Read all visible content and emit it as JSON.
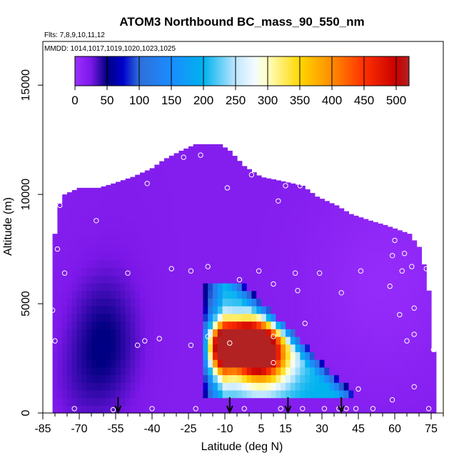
{
  "chart_data": {
    "type": "heatmap",
    "title": "ATOM3 Northbound BC_mass_90_550_nm",
    "subtitle_lines": [
      "Flts: 7,8,9,10,11,12",
      "MMDD: 1014,1017,1019,1020,1023,1025"
    ],
    "xlabel": "Latitude (deg N)",
    "ylabel": "Altitude (m)",
    "xlim": [
      -85,
      80
    ],
    "ylim": [
      0,
      17000
    ],
    "x_tick_labels": [
      "-85",
      "-70",
      "-55",
      "-40",
      "-25",
      "-10",
      "5",
      "15",
      "30",
      "45",
      "60",
      "75"
    ],
    "x_tick_values": [
      -85,
      -70,
      -55,
      -40,
      -25,
      -10,
      5,
      15,
      30,
      45,
      60,
      75
    ],
    "x_minor_step": 5,
    "y_ticks": [
      0,
      5000,
      10000,
      15000
    ],
    "colorbar": {
      "range": [
        0,
        520
      ],
      "tick_values": [
        0,
        50,
        100,
        150,
        200,
        250,
        300,
        350,
        400,
        450,
        500
      ],
      "tick_labels": [
        "0",
        "50",
        "100",
        "150",
        "200",
        "250",
        "300",
        "350",
        "400",
        "450",
        "500"
      ]
    },
    "color_stops": [
      {
        "v": 0,
        "c": "#9b30ff"
      },
      {
        "v": 25,
        "c": "#7b17e8"
      },
      {
        "v": 50,
        "c": "#000080"
      },
      {
        "v": 75,
        "c": "#0000cd"
      },
      {
        "v": 100,
        "c": "#2f6fd8"
      },
      {
        "v": 150,
        "c": "#1a8cff"
      },
      {
        "v": 200,
        "c": "#00b2ee"
      },
      {
        "v": 250,
        "c": "#bfe7ff"
      },
      {
        "v": 280,
        "c": "#f4fbff"
      },
      {
        "v": 300,
        "c": "#ffffc0"
      },
      {
        "v": 350,
        "c": "#ffd700"
      },
      {
        "v": 400,
        "c": "#ff8c00"
      },
      {
        "v": 450,
        "c": "#ff3000"
      },
      {
        "v": 500,
        "c": "#c80000"
      },
      {
        "v": 520,
        "c": "#b22222"
      }
    ],
    "series": [
      {
        "name": "BC_mass_90_550_nm",
        "envelope": [
          [
            -81,
            5000
          ],
          [
            -80,
            8200
          ],
          [
            -78,
            9600
          ],
          [
            -76,
            10000
          ],
          [
            -70,
            10300
          ],
          [
            -62,
            10300
          ],
          [
            -56,
            10500
          ],
          [
            -48,
            10800
          ],
          [
            -40,
            11200
          ],
          [
            -35,
            11600
          ],
          [
            -28,
            12000
          ],
          [
            -22,
            12300
          ],
          [
            -12,
            12300
          ],
          [
            -8,
            12000
          ],
          [
            -2,
            11300
          ],
          [
            5,
            10800
          ],
          [
            14,
            10600
          ],
          [
            22,
            10400
          ],
          [
            28,
            9900
          ],
          [
            36,
            9500
          ],
          [
            42,
            9100
          ],
          [
            50,
            8800
          ],
          [
            56,
            8600
          ],
          [
            66,
            8200
          ],
          [
            70,
            7600
          ],
          [
            72,
            6800
          ],
          [
            74,
            5600
          ],
          [
            76,
            2800
          ],
          [
            78,
            0
          ],
          [
            -80,
            0
          ]
        ],
        "features": [
          {
            "kind": "plume",
            "x": -60,
            "y": 3200,
            "sx": 10,
            "sy": 2200,
            "v": 50
          },
          {
            "kind": "plume",
            "x": -50,
            "y": 7500,
            "sx": 12,
            "sy": 3500,
            "v": 20
          },
          {
            "kind": "plume",
            "x": -72,
            "y": 1200,
            "sx": 8,
            "sy": 1500,
            "v": 25
          },
          {
            "kind": "plume",
            "x": 55,
            "y": 6000,
            "sx": 20,
            "sy": 3000,
            "v": 5
          }
        ],
        "wedge": {
          "x0": -18,
          "x1": 45,
          "y_base": 700,
          "y_top": 6000,
          "x_top_end": -3,
          "core": [
            {
              "x": -2,
              "y": 3200,
              "sx": 7,
              "sy": 650,
              "v": 480
            },
            {
              "x": 5,
              "y": 2600,
              "sx": 8,
              "sy": 900,
              "v": 330
            },
            {
              "x": -12,
              "y": 2900,
              "sx": 4,
              "sy": 900,
              "v": 290
            }
          ]
        },
        "sample_points": [
          [
            -81,
            4700
          ],
          [
            -80,
            3300
          ],
          [
            -79,
            7500
          ],
          [
            -78,
            9500
          ],
          [
            -76,
            6400
          ],
          [
            -72,
            200
          ],
          [
            -63,
            8800
          ],
          [
            -56,
            150
          ],
          [
            -50,
            6400
          ],
          [
            -46,
            3100
          ],
          [
            -43,
            3300
          ],
          [
            -42,
            10500
          ],
          [
            -40,
            200
          ],
          [
            -37,
            3400
          ],
          [
            -32,
            6600
          ],
          [
            -27,
            11700
          ],
          [
            -24,
            6500
          ],
          [
            -24,
            3100
          ],
          [
            -22,
            200
          ],
          [
            -20,
            11800
          ],
          [
            -17,
            6700
          ],
          [
            -17,
            3500
          ],
          [
            -12,
            12500
          ],
          [
            -9,
            10300
          ],
          [
            -8,
            3200
          ],
          [
            -4,
            6100
          ],
          [
            -2,
            200
          ],
          [
            1,
            10900
          ],
          [
            4,
            6500
          ],
          [
            10,
            5900
          ],
          [
            10,
            3500
          ],
          [
            10,
            2300
          ],
          [
            12,
            9700
          ],
          [
            13,
            200
          ],
          [
            15,
            10400
          ],
          [
            19,
            6400
          ],
          [
            20,
            5600
          ],
          [
            21,
            10400
          ],
          [
            22,
            200
          ],
          [
            23,
            4100
          ],
          [
            29,
            6400
          ],
          [
            31,
            200
          ],
          [
            37,
            200
          ],
          [
            38,
            5500
          ],
          [
            40,
            200
          ],
          [
            44,
            200
          ],
          [
            45,
            1100
          ],
          [
            46,
            6500
          ],
          [
            51,
            200
          ],
          [
            58,
            5800
          ],
          [
            59,
            600
          ],
          [
            59,
            7200
          ],
          [
            60,
            7900
          ],
          [
            62,
            4500
          ],
          [
            63,
            6500
          ],
          [
            64,
            7300
          ],
          [
            65,
            3300
          ],
          [
            67,
            6700
          ],
          [
            68,
            4800
          ],
          [
            68,
            3600
          ],
          [
            68,
            1200
          ],
          [
            68,
            8300
          ],
          [
            73,
            6600
          ],
          [
            74,
            200
          ],
          [
            76,
            2900
          ]
        ],
        "arrow_latitudes": [
          -54,
          -8,
          16,
          38
        ]
      }
    ]
  }
}
